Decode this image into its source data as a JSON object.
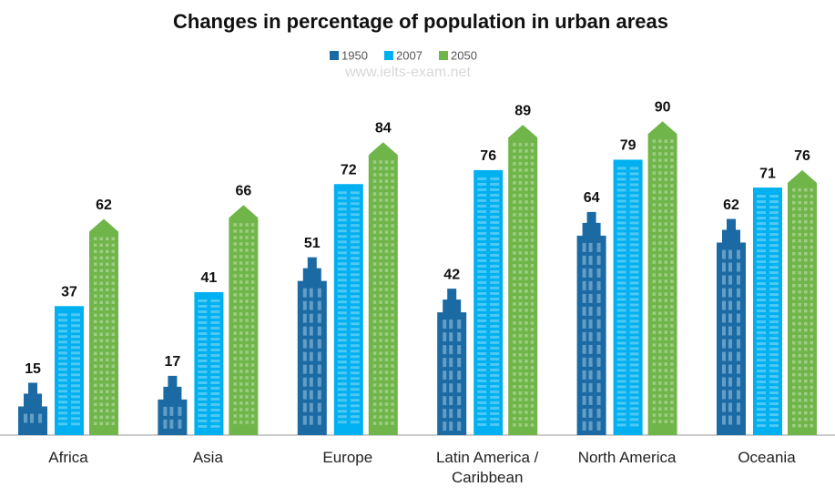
{
  "chart_data": {
    "type": "bar",
    "title": "Changes in percentage of population in urban areas",
    "watermark": "www.ielts-exam.net",
    "categories": [
      "Africa",
      "Asia",
      "Europe",
      "Latin America / Caribbean",
      "North America",
      "Oceania"
    ],
    "series": [
      {
        "name": "1950",
        "color": "#1b6aa3",
        "values": [
          15,
          17,
          51,
          42,
          64,
          62
        ]
      },
      {
        "name": "2007",
        "color": "#00b0f0",
        "values": [
          37,
          41,
          72,
          76,
          79,
          71
        ]
      },
      {
        "name": "2050",
        "color": "#70b54a",
        "values": [
          62,
          66,
          84,
          89,
          90,
          76
        ]
      }
    ],
    "ylim": [
      0,
      100
    ]
  }
}
